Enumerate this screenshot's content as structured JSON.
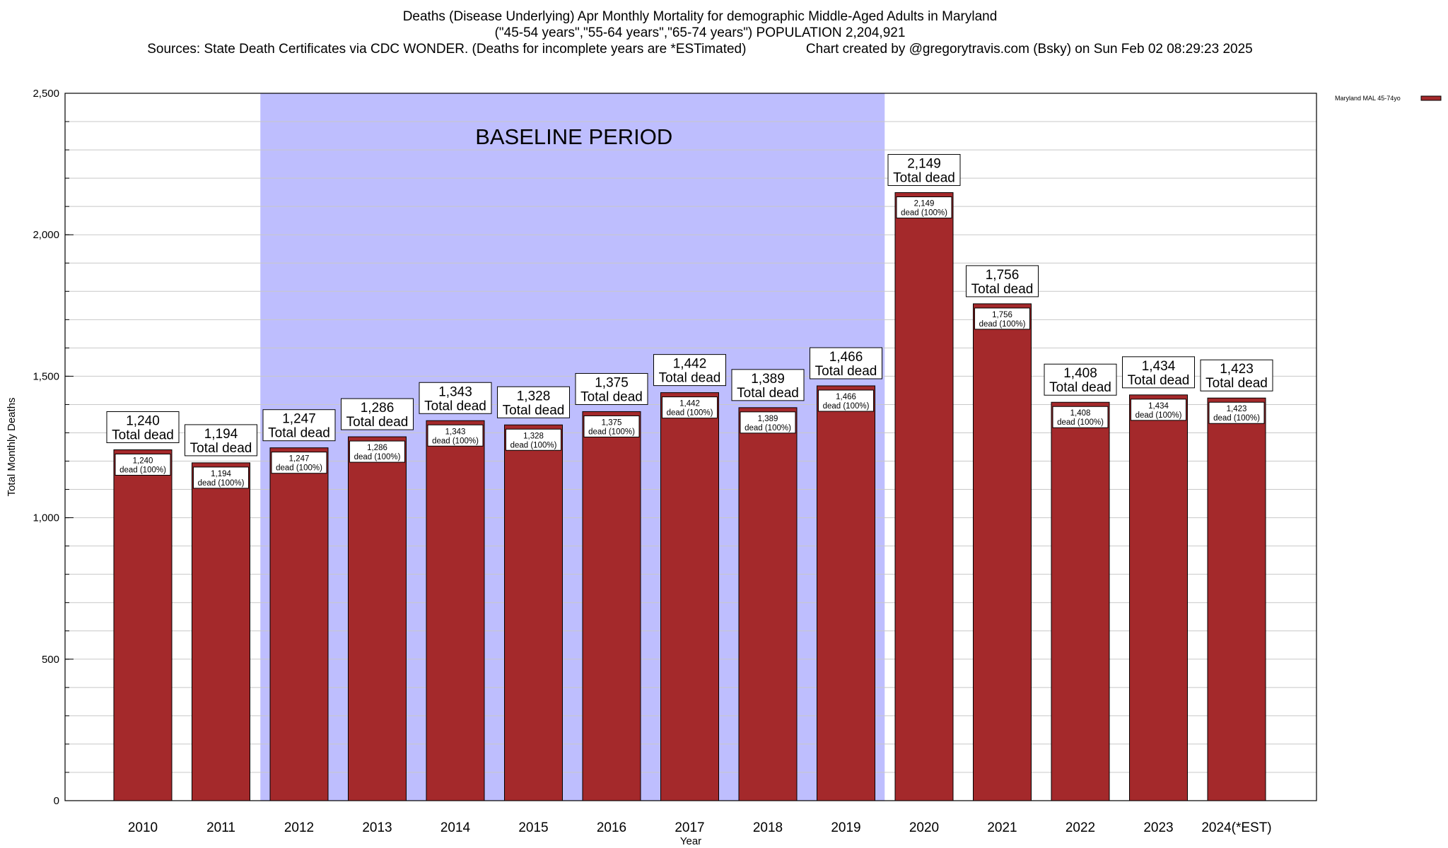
{
  "title": {
    "line1": "Deaths (Disease Underlying) Apr Monthly Mortality for demographic Middle-Aged Adults in Maryland",
    "line2": "(\"45-54 years\",\"55-64 years\",\"65-74 years\") POPULATION 2,204,921",
    "line3_left": "Sources: State Death Certificates via CDC WONDER. (Deaths for incomplete years are *ESTimated)",
    "line3_right": "Chart created by @gregorytravis.com (Bsky) on Sun Feb 02 08:29:23 2025"
  },
  "colors": {
    "bar": "#a4292b",
    "baseline_band": "#bebefe",
    "grid": "#c8c8c8"
  },
  "chart_data": {
    "type": "bar",
    "categories": [
      "2010",
      "2011",
      "2012",
      "2013",
      "2014",
      "2015",
      "2016",
      "2017",
      "2018",
      "2019",
      "2020",
      "2021",
      "2022",
      "2023",
      "2024(*EST)"
    ],
    "series": [
      {
        "name": "Maryland MAL 45-74yo",
        "values": [
          1240,
          1194,
          1247,
          1286,
          1343,
          1328,
          1375,
          1442,
          1389,
          1466,
          2149,
          1756,
          1408,
          1434,
          1423
        ]
      }
    ],
    "value_labels": [
      "1,240",
      "1,194",
      "1,247",
      "1,286",
      "1,343",
      "1,328",
      "1,375",
      "1,442",
      "1,389",
      "1,466",
      "2,149",
      "1,756",
      "1,408",
      "1,434",
      "1,423"
    ],
    "big_label_suffix": "Total dead",
    "small_label_suffix": "dead (100%)",
    "xlabel": "Year",
    "ylabel": "Total Monthly Deaths",
    "ylim": [
      0,
      2500
    ],
    "yticks": [
      0,
      500,
      1000,
      1500,
      2000,
      2500
    ],
    "ytick_labels": [
      "0",
      "500",
      "1,000",
      "1,500",
      "2,000",
      "2,500"
    ],
    "minor_tick_step": 100,
    "grid": true,
    "legend_position": "top-right",
    "annotations": [
      {
        "text": "BASELINE PERIOD",
        "span_categories": [
          "2012",
          "2019"
        ]
      }
    ]
  }
}
